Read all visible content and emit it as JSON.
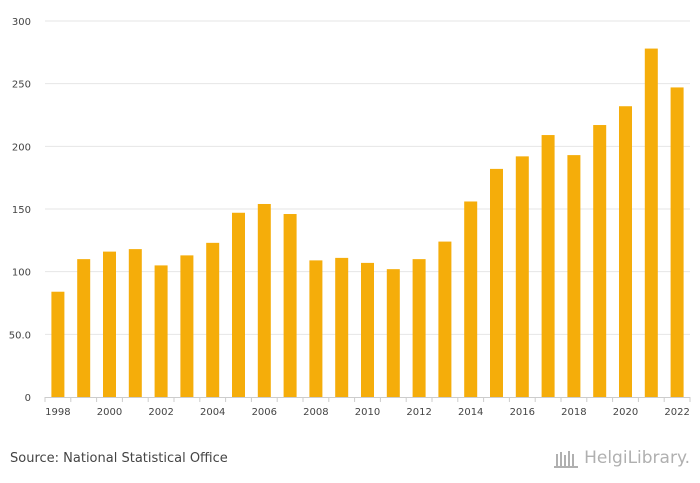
{
  "chart_data": {
    "type": "bar",
    "title": "",
    "xlabel": "",
    "ylabel": "",
    "ylim": [
      0,
      300
    ],
    "yticks": [
      0,
      50,
      100,
      150,
      200,
      250,
      300
    ],
    "ytick_labels": [
      "0",
      "50.0",
      "100",
      "150",
      "200",
      "250",
      "300"
    ],
    "categories": [
      "1998",
      "1999",
      "2000",
      "2001",
      "2002",
      "2003",
      "2004",
      "2005",
      "2006",
      "2007",
      "2008",
      "2009",
      "2010",
      "2011",
      "2012",
      "2013",
      "2014",
      "2015",
      "2016",
      "2017",
      "2018",
      "2019",
      "2020",
      "2021",
      "2022"
    ],
    "xtick_labels": [
      "1998",
      "2000",
      "2002",
      "2004",
      "2006",
      "2008",
      "2010",
      "2012",
      "2014",
      "2016",
      "2018",
      "2020",
      "2022"
    ],
    "values": [
      84,
      110,
      116,
      118,
      105,
      113,
      123,
      147,
      154,
      146,
      109,
      111,
      107,
      102,
      110,
      124,
      156,
      182,
      192,
      209,
      193,
      217,
      232,
      278,
      247
    ],
    "bar_color": "#f5ad0a",
    "grid": true
  },
  "footer": {
    "source": "Source: National Statistical Office",
    "brand": "HelgiLibrary."
  },
  "colors": {
    "grid": "#e6e6e6",
    "axis": "#cccccc",
    "text": "#444444",
    "brand": "#b0b0b0"
  }
}
